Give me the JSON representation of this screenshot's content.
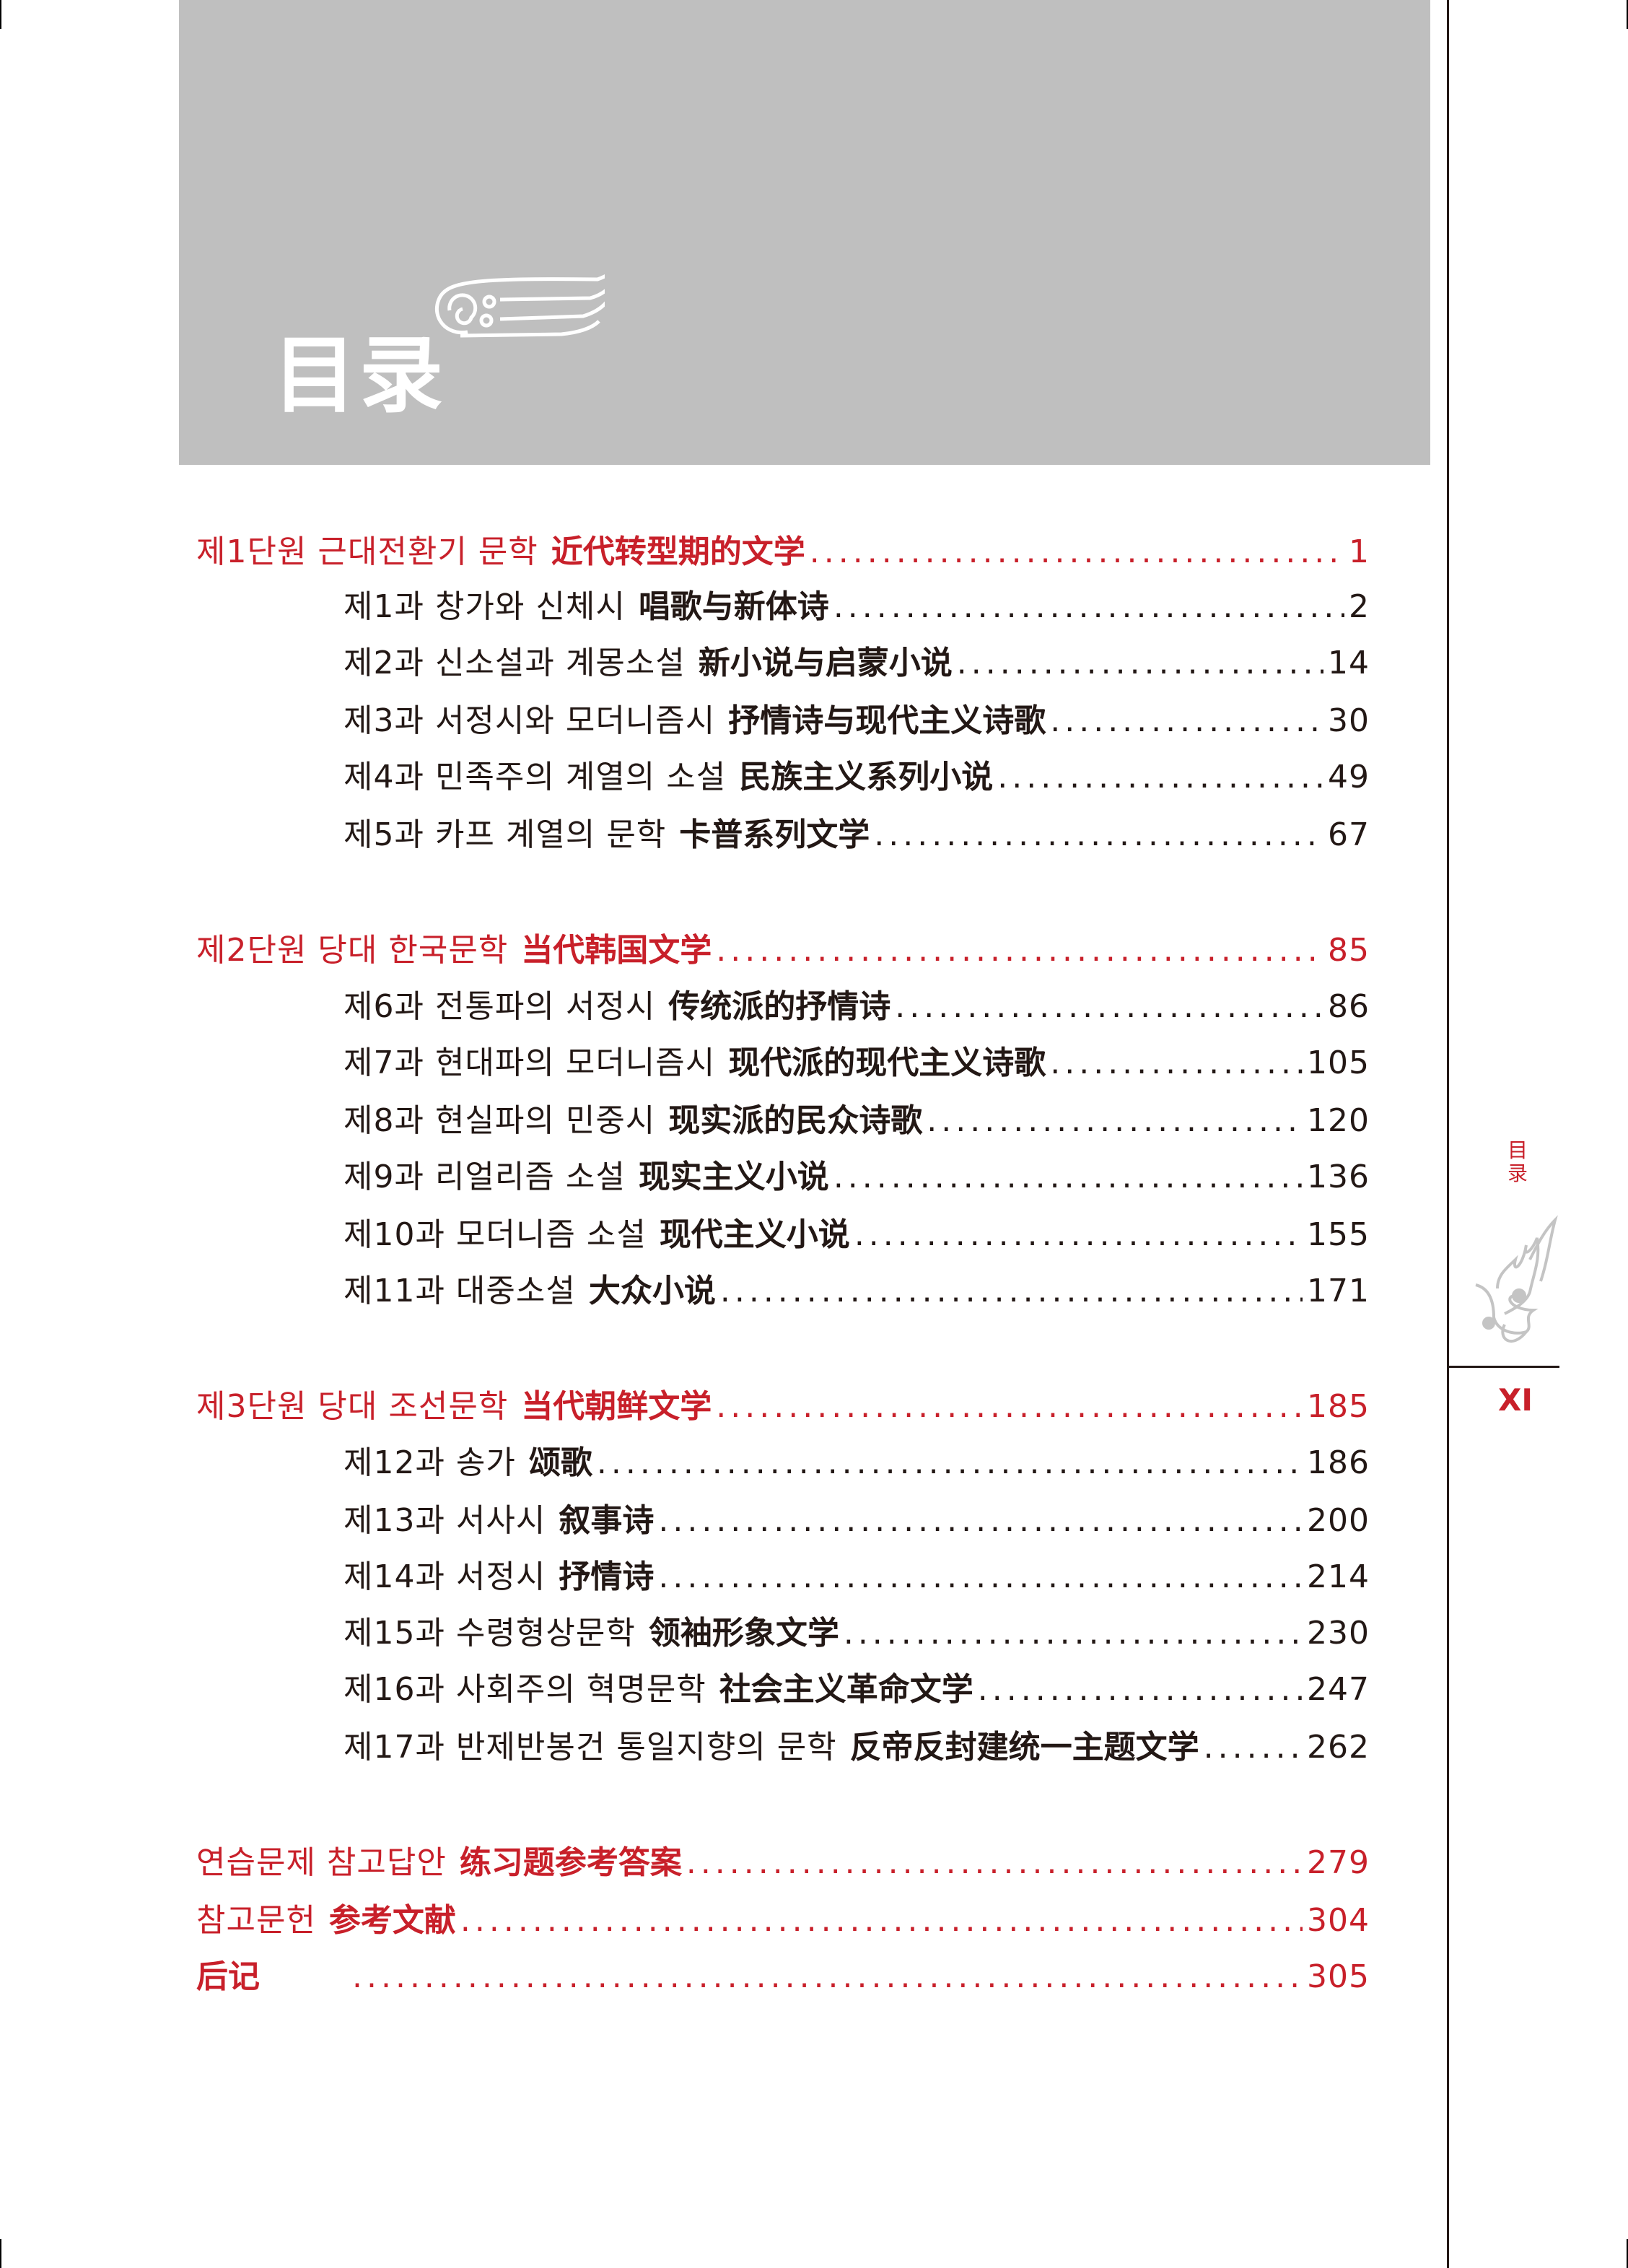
{
  "header": {
    "title": "目录"
  },
  "side": {
    "title": "目录",
    "page_number": "XI"
  },
  "toc": [
    {
      "type": "unit",
      "ko": "제1단원 근대전환기 문학",
      "zh": "近代转型期的文学",
      "page": "1"
    },
    {
      "type": "lesson",
      "ko": "제1과 창가와 신체시",
      "zh": "唱歌与新体诗",
      "page": "2"
    },
    {
      "type": "lesson",
      "ko": "제2과 신소설과 계몽소설",
      "zh": "新小说与启蒙小说",
      "page": "14"
    },
    {
      "type": "lesson",
      "ko": "제3과 서정시와 모더니즘시",
      "zh": "抒情诗与现代主义诗歌",
      "page": "30"
    },
    {
      "type": "lesson",
      "ko": "제4과 민족주의 계열의 소설",
      "zh": "民族主义系列小说",
      "page": "49"
    },
    {
      "type": "lesson",
      "ko": "제5과 카프 계열의 문학",
      "zh": "卡普系列文学",
      "page": "67"
    },
    {
      "type": "unit",
      "ko": "제2단원 당대 한국문학",
      "zh": "当代韩国文学",
      "page": "85"
    },
    {
      "type": "lesson",
      "ko": "제6과 전통파의 서정시",
      "zh": "传统派的抒情诗",
      "page": "86"
    },
    {
      "type": "lesson",
      "ko": "제7과 현대파의 모더니즘시",
      "zh": "现代派的现代主义诗歌",
      "page": "105"
    },
    {
      "type": "lesson",
      "ko": "제8과 현실파의 민중시",
      "zh": "现实派的民众诗歌",
      "page": "120"
    },
    {
      "type": "lesson",
      "ko": "제9과 리얼리즘 소설",
      "zh": "现实主义小说",
      "page": "136"
    },
    {
      "type": "lesson",
      "ko": "제10과 모더니즘 소설",
      "zh": "现代主义小说",
      "page": "155"
    },
    {
      "type": "lesson",
      "ko": "제11과 대중소설",
      "zh": "大众小说",
      "page": "171"
    },
    {
      "type": "unit",
      "ko": "제3단원 당대 조선문학",
      "zh": "当代朝鲜文学",
      "page": "185"
    },
    {
      "type": "lesson",
      "ko": "제12과 송가",
      "zh": "颂歌",
      "page": "186"
    },
    {
      "type": "lesson",
      "ko": "제13과 서사시",
      "zh": "叙事诗",
      "page": "200"
    },
    {
      "type": "lesson",
      "ko": "제14과 서정시",
      "zh": "抒情诗",
      "page": "214"
    },
    {
      "type": "lesson",
      "ko": "제15과 수령형상문학",
      "zh": "领袖形象文学",
      "page": "230"
    },
    {
      "type": "lesson",
      "ko": "제16과 사회주의 혁명문학",
      "zh": "社会主义革命文学",
      "page": "247"
    },
    {
      "type": "lesson",
      "ko": "제17과 반제반봉건 통일지향의 문학",
      "zh": "反帝反封建统一主题文学",
      "page": "262"
    },
    {
      "type": "unit",
      "ko": "연습문제 참고답안",
      "zh": "练习题参考答案",
      "page": "279"
    },
    {
      "type": "unit",
      "ko": "참고문헌",
      "zh": "参考文献",
      "page": "304"
    },
    {
      "type": "unit",
      "ko": "",
      "zh": "后记",
      "page": "305"
    }
  ],
  "colors": {
    "accent": "#c8202a",
    "header_bg": "#bfbfbf",
    "text": "#231815",
    "ornament": "#c4c4c4"
  }
}
